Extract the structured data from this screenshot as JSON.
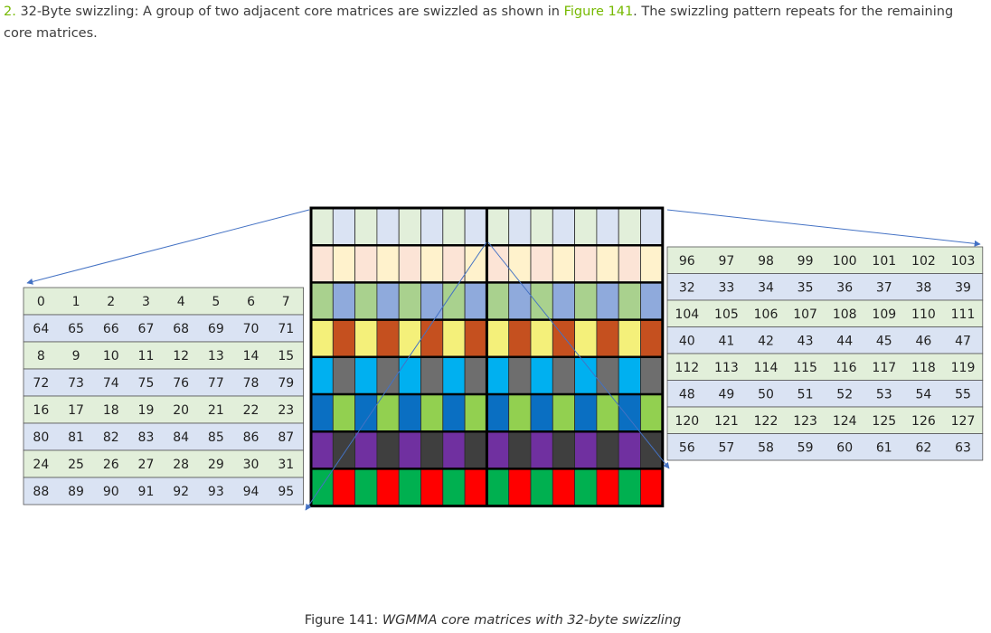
{
  "intro": {
    "number": "2.",
    "before": " 32-Byte swizzling: A group of two adjacent core matrices are swizzled as shown in ",
    "link": "Figure 141",
    "after": ". The swizzling pattern repeats for the remaining core matrices."
  },
  "caption": {
    "prefix": "Figure 141: ",
    "title": "WGMMA core matrices with 32-byte swizzling"
  },
  "left_table": {
    "rows": [
      [
        "0",
        "1",
        "2",
        "3",
        "4",
        "5",
        "6",
        "7"
      ],
      [
        "64",
        "65",
        "66",
        "67",
        "68",
        "69",
        "70",
        "71"
      ],
      [
        "8",
        "9",
        "10",
        "11",
        "12",
        "13",
        "14",
        "15"
      ],
      [
        "72",
        "73",
        "74",
        "75",
        "76",
        "77",
        "78",
        "79"
      ],
      [
        "16",
        "17",
        "18",
        "19",
        "20",
        "21",
        "22",
        "23"
      ],
      [
        "80",
        "81",
        "82",
        "83",
        "84",
        "85",
        "86",
        "87"
      ],
      [
        "24",
        "25",
        "26",
        "27",
        "28",
        "29",
        "30",
        "31"
      ],
      [
        "88",
        "89",
        "90",
        "91",
        "92",
        "93",
        "94",
        "95"
      ]
    ]
  },
  "right_table": {
    "rows": [
      [
        "96",
        "97",
        "98",
        "99",
        "100",
        "101",
        "102",
        "103"
      ],
      [
        "32",
        "33",
        "34",
        "35",
        "36",
        "37",
        "38",
        "39"
      ],
      [
        "104",
        "105",
        "106",
        "107",
        "108",
        "109",
        "110",
        "111"
      ],
      [
        "40",
        "41",
        "42",
        "43",
        "44",
        "45",
        "46",
        "47"
      ],
      [
        "112",
        "113",
        "114",
        "115",
        "116",
        "117",
        "118",
        "119"
      ],
      [
        "48",
        "49",
        "50",
        "51",
        "52",
        "53",
        "54",
        "55"
      ],
      [
        "120",
        "121",
        "122",
        "123",
        "124",
        "125",
        "126",
        "127"
      ],
      [
        "56",
        "57",
        "58",
        "59",
        "60",
        "61",
        "62",
        "63"
      ]
    ]
  },
  "colors": {
    "green_light": "#e2efda",
    "blue_light": "#dae3f3",
    "peach": "#fce4d6",
    "cream": "#fff2cc",
    "green_mid": "#a9d18e",
    "blue_mid": "#8faadc",
    "yellow": "#f4f07a",
    "orange": "#c5501f",
    "cyan": "#00b0f0",
    "gray": "#6e6e6e",
    "navy": "#0a6fc2",
    "lime": "#92d050",
    "purple": "#7030a0",
    "dark": "#3f3f3f",
    "green": "#00b050",
    "red": "#ff0000",
    "arrow": "#4472c4"
  },
  "grid": {
    "rows": [
      [
        "green_light",
        "blue_light"
      ],
      [
        "peach",
        "cream"
      ],
      [
        "green_mid",
        "blue_mid"
      ],
      [
        "yellow",
        "orange"
      ],
      [
        "cyan",
        "gray"
      ],
      [
        "navy",
        "lime"
      ],
      [
        "purple",
        "dark"
      ],
      [
        "green",
        "red"
      ]
    ]
  }
}
